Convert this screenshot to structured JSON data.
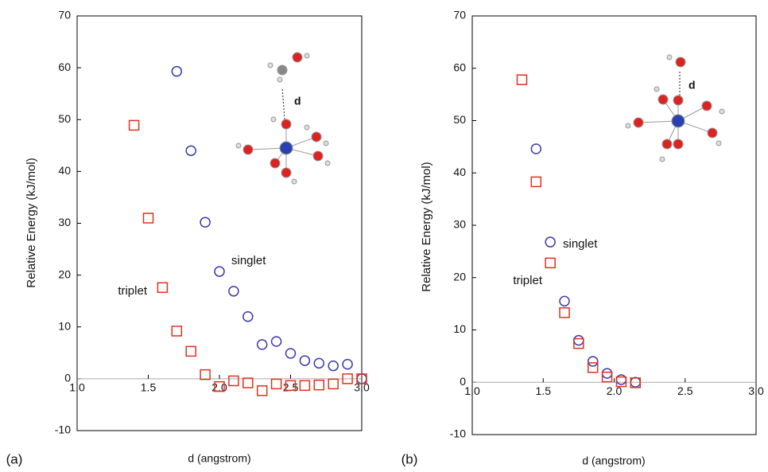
{
  "chart_data": [
    {
      "type": "scatter",
      "panel_label": "(a)",
      "xlabel": "d (angstrom)",
      "ylabel": "Relative Energy (kJ/mol)",
      "xlim": [
        1,
        3
      ],
      "xticks": [
        {
          "value": 1,
          "label": "1.0"
        },
        {
          "value": 1.5,
          "label": "1.5"
        },
        {
          "value": 2,
          "label": "2.0"
        },
        {
          "value": 2.5,
          "label": "2.5"
        },
        {
          "value": 3,
          "label": "3.0"
        }
      ],
      "ylim": [
        -10,
        70
      ],
      "yticks": [
        -10,
        0,
        10,
        20,
        30,
        40,
        50,
        60,
        70
      ],
      "zero_line": true,
      "molecule_label": "d",
      "series": [
        {
          "name": "singlet",
          "color": "#3b3bab",
          "marker": "circle",
          "x": [
            1.7,
            1.8,
            1.9,
            2.0,
            2.1,
            2.2,
            2.3,
            2.4,
            2.5,
            2.6,
            2.7,
            2.8,
            2.9,
            3.0
          ],
          "values": [
            59.3,
            44,
            30.2,
            20.7,
            16.9,
            12,
            6.6,
            7.2,
            4.9,
            3.5,
            3,
            2.5,
            2.8,
            0
          ]
        },
        {
          "name": "triplet",
          "color": "#e0321e",
          "marker": "square",
          "x": [
            1.4,
            1.5,
            1.6,
            1.7,
            1.8,
            1.9,
            2.0,
            2.1,
            2.2,
            2.3,
            2.4,
            2.5,
            2.6,
            2.7,
            2.8,
            2.9,
            3.0
          ],
          "values": [
            48.9,
            31,
            17.6,
            9.2,
            5.3,
            0.8,
            -1.5,
            -0.4,
            -0.8,
            -2.3,
            -1,
            -1.3,
            -1.3,
            -1.2,
            -1,
            0,
            0
          ]
        }
      ]
    },
    {
      "type": "scatter",
      "panel_label": "(b)",
      "xlabel": "d (angstrom)",
      "ylabel": "Relative Energy (kJ/mol)",
      "xlim": [
        1,
        3
      ],
      "xticks": [
        {
          "value": 1,
          "label": "1.0"
        },
        {
          "value": 1.5,
          "label": "1.5"
        },
        {
          "value": 2,
          "label": "2.0"
        },
        {
          "value": 2.5,
          "label": "2.5"
        },
        {
          "value": 3,
          "label": "3.0"
        }
      ],
      "ylim": [
        -10,
        70
      ],
      "yticks": [
        -10,
        0,
        10,
        20,
        30,
        40,
        50,
        60,
        70
      ],
      "zero_line": true,
      "molecule_label": "d",
      "series": [
        {
          "name": "singlet",
          "color": "#3b3bab",
          "marker": "circle",
          "x": [
            1.45,
            1.55,
            1.65,
            1.75,
            1.85,
            1.95,
            2.05,
            2.15
          ],
          "values": [
            44.6,
            26.8,
            15.5,
            8,
            4,
            1.7,
            0.5,
            0
          ]
        },
        {
          "name": "triplet",
          "color": "#e0321e",
          "marker": "square",
          "x": [
            1.35,
            1.45,
            1.55,
            1.65,
            1.75,
            1.85,
            1.95,
            2.05,
            2.15
          ],
          "values": [
            57.8,
            38.3,
            22.8,
            13.3,
            7.4,
            2.8,
            1,
            0.1,
            -0.1
          ]
        }
      ]
    }
  ]
}
